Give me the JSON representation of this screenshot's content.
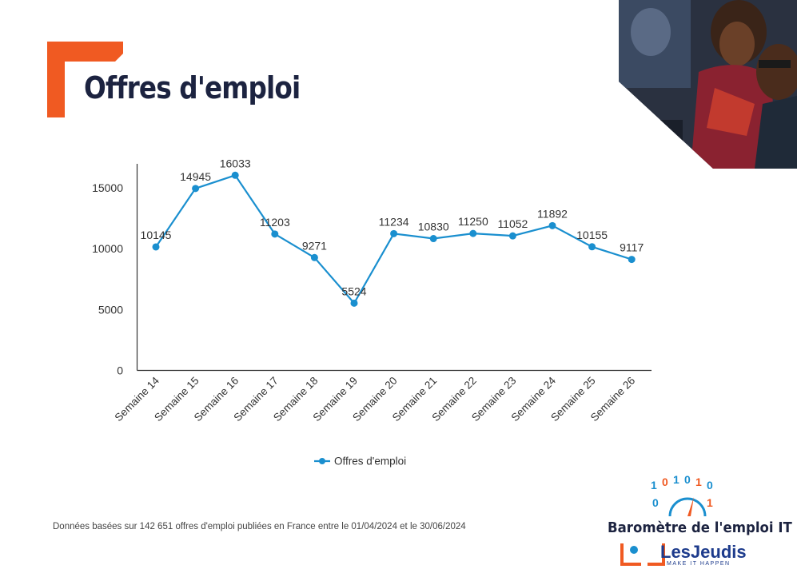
{
  "header": {
    "title": "Offres d'emploi"
  },
  "footnote": "Données basées sur 142 651 offres d'emploi publiées en France entre le 01/04/2024 et le 30/06/2024",
  "brand": {
    "title": "Baromètre de l'emploi IT",
    "name": "LesJeudis",
    "tagline": "MAKE IT HAPPEN"
  },
  "colors": {
    "accent": "#f05a22",
    "series": "#1a8fcf",
    "title": "#1c2340",
    "brand_blue": "#1d3b8c"
  },
  "chart_data": {
    "type": "line",
    "categories": [
      "Semaine 14",
      "Semaine 15",
      "Semaine 16",
      "Semaine 17",
      "Semaine 18",
      "Semaine 19",
      "Semaine 20",
      "Semaine 21",
      "Semaine 22",
      "Semaine 23",
      "Semaine 24",
      "Semaine 25",
      "Semaine 26"
    ],
    "series": [
      {
        "name": "Offres d'emploi",
        "values": [
          10145,
          14945,
          16033,
          11203,
          9271,
          5524,
          11234,
          10830,
          11250,
          11052,
          11892,
          10155,
          9117
        ]
      }
    ],
    "yticks": [
      0,
      5000,
      10000,
      15000
    ],
    "ylim": [
      0,
      17000
    ],
    "legend_position": "bottom",
    "grid": false
  }
}
